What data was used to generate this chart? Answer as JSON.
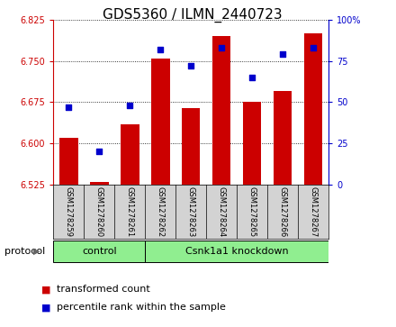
{
  "title": "GDS5360 / ILMN_2440723",
  "samples": [
    "GSM1278259",
    "GSM1278260",
    "GSM1278261",
    "GSM1278262",
    "GSM1278263",
    "GSM1278264",
    "GSM1278265",
    "GSM1278266",
    "GSM1278267"
  ],
  "transformed_counts": [
    6.61,
    6.53,
    6.635,
    6.755,
    6.665,
    6.795,
    6.675,
    6.695,
    6.8
  ],
  "percentile_ranks": [
    47,
    20,
    48,
    82,
    72,
    83,
    65,
    79,
    83
  ],
  "ylim_left": [
    6.525,
    6.825
  ],
  "ylim_right": [
    0,
    100
  ],
  "yticks_left": [
    6.525,
    6.6,
    6.675,
    6.75,
    6.825
  ],
  "yticks_right": [
    0,
    25,
    50,
    75,
    100
  ],
  "bar_color": "#CC0000",
  "dot_color": "#0000CC",
  "control_indices": [
    0,
    1,
    2
  ],
  "knockdown_indices": [
    3,
    4,
    5,
    6,
    7,
    8
  ],
  "control_label": "control",
  "knockdown_label": "Csnk1a1 knockdown",
  "protocol_label": "protocol",
  "legend_bar_label": "transformed count",
  "legend_dot_label": "percentile rank within the sample",
  "bar_width": 0.6,
  "background_color": "#ffffff",
  "plot_bg_color": "#ffffff",
  "group_bg_color": "#d3d3d3",
  "green_color": "#90EE90",
  "title_fontsize": 11,
  "tick_fontsize": 7,
  "label_fontsize": 8,
  "right_tick_color": "#0000CC",
  "left_tick_color": "#CC0000",
  "sample_label_fontsize": 6,
  "proto_fontsize": 8,
  "legend_fontsize": 8
}
